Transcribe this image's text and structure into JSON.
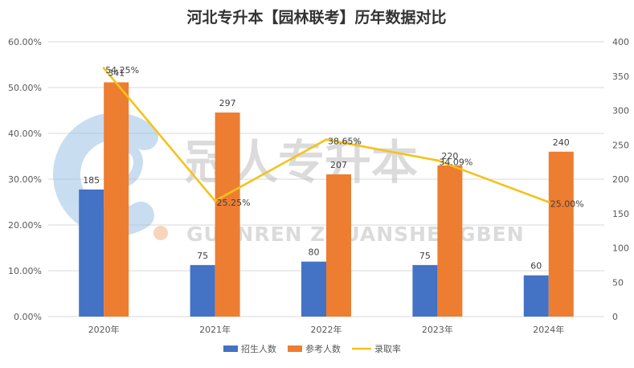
{
  "title": "河北专升本【园林联考】历年数据对比",
  "watermark": {
    "main": "冠人专升本",
    "sub": "GUANREN ZHUANSHENGBEN"
  },
  "colors": {
    "admitted": "#4472c4",
    "applicants": "#ed7d31",
    "rate": "#f5c21b",
    "grid": "#d9d9d9",
    "watermark": "#bfbfbf",
    "logo_blue": "#9dc3e6",
    "logo_orange": "#f4b183"
  },
  "chart_data": {
    "type": "bar",
    "title": "河北专升本【园林联考】历年数据对比",
    "categories": [
      "2020年",
      "2021年",
      "2022年",
      "2023年",
      "2024年"
    ],
    "series": [
      {
        "name": "招生人数",
        "type": "bar",
        "axis": "right",
        "values": [
          185,
          75,
          80,
          75,
          60
        ],
        "labels": [
          "185",
          "75",
          "80",
          "75",
          "60"
        ]
      },
      {
        "name": "参考人数",
        "type": "bar",
        "axis": "right",
        "values": [
          341,
          297,
          207,
          220,
          240
        ],
        "labels": [
          "341",
          "297",
          "207",
          "220",
          "240"
        ]
      },
      {
        "name": "录取率",
        "type": "line",
        "axis": "left",
        "values": [
          54.25,
          25.25,
          38.65,
          34.09,
          25.0
        ],
        "labels": [
          "54.25%",
          "25.25%",
          "38.65%",
          "34.09%",
          "25.00%"
        ]
      }
    ],
    "y_left": {
      "min": 0,
      "max": 60,
      "step": 10,
      "ticks": [
        "0.00%",
        "10.00%",
        "20.00%",
        "30.00%",
        "40.00%",
        "50.00%",
        "60.00%"
      ]
    },
    "y_right": {
      "min": 0,
      "max": 400,
      "step": 50,
      "ticks": [
        "0",
        "50",
        "100",
        "150",
        "200",
        "250",
        "300",
        "350",
        "400"
      ]
    },
    "grid": true,
    "legend_position": "bottom"
  }
}
